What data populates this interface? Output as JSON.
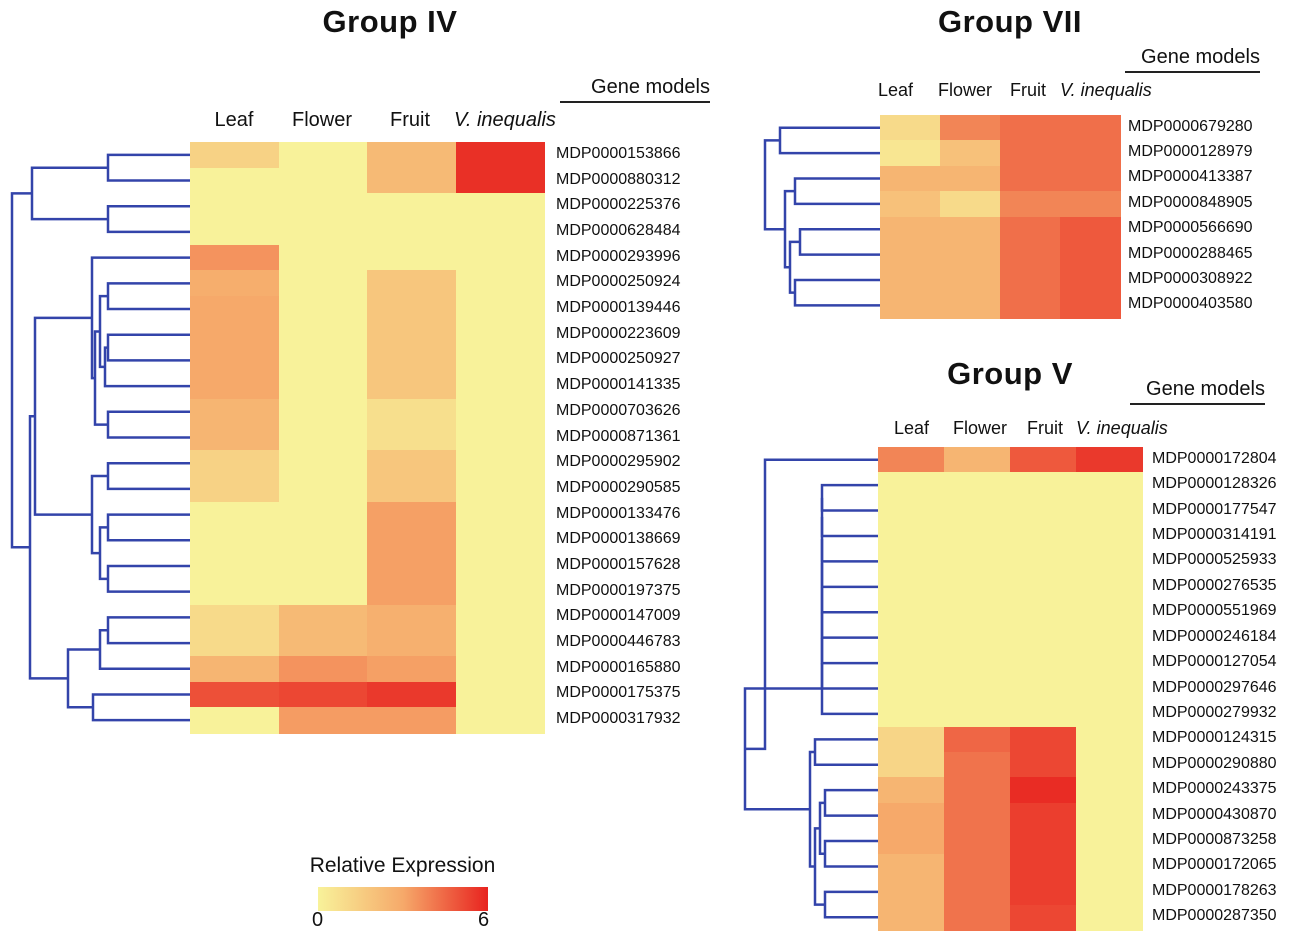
{
  "chart_data": [
    {
      "type": "heatmap",
      "title": "Group IV",
      "row_header": "Gene models",
      "columns": [
        "Leaf",
        "Flower",
        "Fruit",
        "V. inequalis"
      ],
      "rows": [
        "MDP0000153866",
        "MDP0000880312",
        "MDP0000225376",
        "MDP0000628484",
        "MDP0000293996",
        "MDP0000250924",
        "MDP0000139446",
        "MDP0000223609",
        "MDP0000250927",
        "MDP0000141335",
        "MDP0000703626",
        "MDP0000871361",
        "MDP0000295902",
        "MDP0000290585",
        "MDP0000133476",
        "MDP0000138669",
        "MDP0000157628",
        "MDP0000197375",
        "MDP0000147009",
        "MDP0000446783",
        "MDP0000165880",
        "MDP0000175375",
        "MDP0000317932"
      ],
      "values": [
        [
          1.3,
          0,
          2.3,
          5.7
        ],
        [
          0,
          0,
          2.3,
          5.7
        ],
        [
          0,
          0,
          0,
          0
        ],
        [
          0,
          0,
          0,
          0
        ],
        [
          3.5,
          0,
          0,
          0
        ],
        [
          2.8,
          0,
          1.8,
          0
        ],
        [
          3.0,
          0,
          1.8,
          0
        ],
        [
          3.0,
          0,
          1.8,
          0
        ],
        [
          3.0,
          0,
          1.8,
          0
        ],
        [
          3.0,
          0,
          1.8,
          0
        ],
        [
          2.5,
          0,
          0.8,
          0
        ],
        [
          2.5,
          0,
          0.8,
          0
        ],
        [
          1.3,
          0,
          1.8,
          0
        ],
        [
          1.3,
          0,
          1.8,
          0
        ],
        [
          0,
          0,
          3.2,
          0
        ],
        [
          0,
          0,
          3.2,
          0
        ],
        [
          0,
          0,
          3.2,
          0
        ],
        [
          0,
          0,
          3.2,
          0
        ],
        [
          1.0,
          2.3,
          2.7,
          0
        ],
        [
          1.0,
          2.3,
          2.7,
          0
        ],
        [
          2.5,
          3.5,
          3.2,
          0
        ],
        [
          5.0,
          5.2,
          5.5,
          0
        ],
        [
          0,
          3.3,
          3.3,
          0
        ]
      ]
    },
    {
      "type": "heatmap",
      "title": "Group VII",
      "row_header": "Gene models",
      "columns": [
        "Leaf",
        "Flower",
        "Fruit",
        "V. inequalis"
      ],
      "rows": [
        "MDP0000679280",
        "MDP0000128979",
        "MDP0000413387",
        "MDP0000848905",
        "MDP0000566690",
        "MDP0000288465",
        "MDP0000308922",
        "MDP0000403580"
      ],
      "values": [
        [
          1.0,
          3.8,
          4.3,
          4.3
        ],
        [
          0.5,
          2.0,
          4.3,
          4.3
        ],
        [
          2.5,
          2.5,
          4.3,
          4.3
        ],
        [
          2.0,
          1.0,
          3.8,
          3.8
        ],
        [
          2.5,
          2.5,
          4.3,
          4.8
        ],
        [
          2.5,
          2.5,
          4.3,
          4.8
        ],
        [
          2.5,
          2.5,
          4.3,
          4.8
        ],
        [
          2.5,
          2.5,
          4.3,
          4.8
        ]
      ]
    },
    {
      "type": "heatmap",
      "title": "Group V",
      "row_header": "Gene models",
      "columns": [
        "Leaf",
        "Flower",
        "Fruit",
        "V. inequalis"
      ],
      "rows": [
        "MDP0000172804",
        "MDP0000128326",
        "MDP0000177547",
        "MDP0000314191",
        "MDP0000525933",
        "MDP0000276535",
        "MDP0000551969",
        "MDP0000246184",
        "MDP0000127054",
        "MDP0000297646",
        "MDP0000279932",
        "MDP0000124315",
        "MDP0000290880",
        "MDP0000243375",
        "MDP0000430870",
        "MDP0000873258",
        "MDP0000172065",
        "MDP0000178263",
        "MDP0000287350"
      ],
      "values": [
        [
          3.8,
          2.5,
          4.8,
          5.5
        ],
        [
          0,
          0,
          0,
          0
        ],
        [
          0,
          0,
          0,
          0
        ],
        [
          0,
          0,
          0,
          0
        ],
        [
          0,
          0,
          0,
          0
        ],
        [
          0,
          0,
          0,
          0
        ],
        [
          0,
          0,
          0,
          0
        ],
        [
          0,
          0,
          0,
          0
        ],
        [
          0,
          0,
          0,
          0
        ],
        [
          0,
          0,
          0,
          0
        ],
        [
          0,
          0,
          0,
          0
        ],
        [
          1.2,
          4.5,
          5.2,
          0
        ],
        [
          1.2,
          4.2,
          5.2,
          0
        ],
        [
          2.5,
          4.2,
          5.8,
          0
        ],
        [
          3.0,
          4.2,
          5.4,
          0
        ],
        [
          3.0,
          4.2,
          5.4,
          0
        ],
        [
          2.5,
          4.2,
          5.4,
          0
        ],
        [
          2.5,
          4.2,
          5.4,
          0
        ],
        [
          2.5,
          4.2,
          5.2,
          0
        ]
      ]
    }
  ],
  "legend": {
    "title": "Relative Expression",
    "min_label": "0",
    "max_label": "6",
    "min": 0,
    "max": 6
  },
  "colors": {
    "low": "#f8f29a",
    "mid": "#f6a96a",
    "high": "#e8231f",
    "dendrogram": "#3344aa"
  }
}
